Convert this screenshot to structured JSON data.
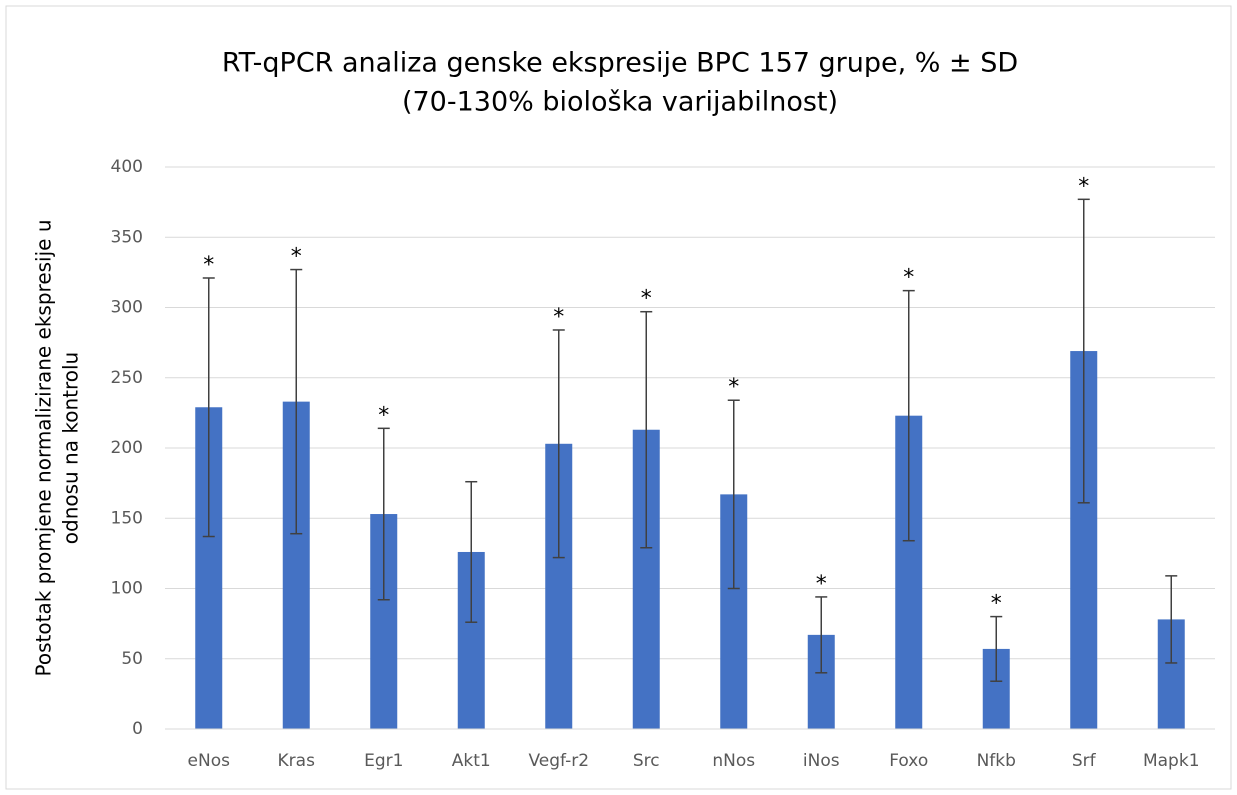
{
  "chart_data": {
    "type": "bar",
    "title": "RT-qPCR analiza genske ekspresije BPC 157 grupe, % ± SD",
    "subtitle": "(70-130% biološka varijabilnost)",
    "y_label": [
      "Postotak promjene normalizirane ekspresije u",
      "odnosu na kontrolu"
    ],
    "categories": [
      "eNos",
      "Kras",
      "Egr1",
      "Akt1",
      "Vegf-r2",
      "Src",
      "nNos",
      "iNos",
      "Foxo",
      "Nfkb",
      "Srf",
      "Mapk1"
    ],
    "values": [
      229,
      233,
      153,
      126,
      203,
      213,
      167,
      67,
      223,
      57,
      269,
      78
    ],
    "errors": [
      92,
      94,
      61,
      50,
      81,
      84,
      67,
      27,
      89,
      23,
      108,
      31
    ],
    "annotations": [
      "*",
      "*",
      "*",
      null,
      "*",
      "*",
      "*",
      "*",
      "*",
      "*",
      "*",
      null
    ],
    "color": "#4472c4",
    "ylim": [
      0,
      400
    ],
    "yticks": [
      0,
      50,
      100,
      150,
      200,
      250,
      300,
      350,
      400
    ],
    "grid": true
  }
}
